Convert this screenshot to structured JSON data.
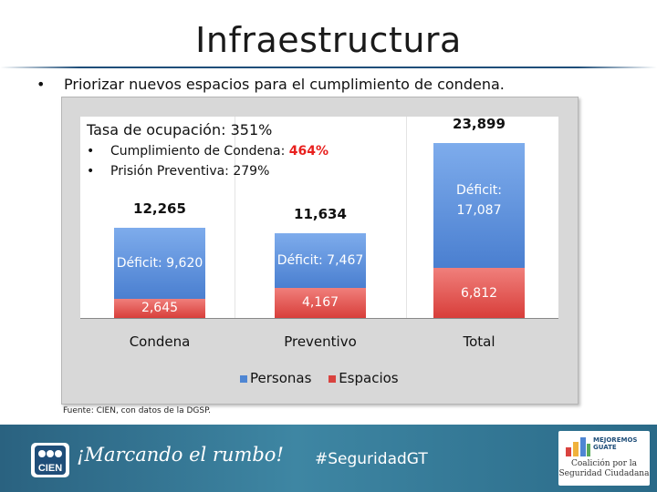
{
  "slide": {
    "title": "Infraestructura",
    "bullet_marker": "•",
    "bullet": "Priorizar nuevos espacios para el cumplimiento de condena.",
    "source": "Fuente: CIEN, con datos de la DGSP."
  },
  "stats": {
    "occupancy": "Tasa de ocupación: 351%",
    "items": [
      {
        "marker": "•",
        "label": "Cumplimiento de Condena: ",
        "value": "464%"
      },
      {
        "marker": "•",
        "label": "Prisión Preventiva: 279%"
      }
    ]
  },
  "chart_data": {
    "type": "bar",
    "stacked": true,
    "categories": [
      "Condena",
      "Preventivo",
      "Total"
    ],
    "series": [
      {
        "name": "Espacios",
        "color": "#d9433f",
        "values": [
          2645,
          4167,
          6812
        ]
      },
      {
        "name": "Personas",
        "color": "#4f86d3",
        "values": [
          9620,
          7467,
          17087
        ]
      }
    ],
    "totals": [
      "12,265",
      "11,634",
      "23,899"
    ],
    "bar_labels": {
      "espacios": [
        "2,645",
        "4,167",
        "6,812"
      ],
      "deficit": [
        "Déficit: 9,620",
        "Déficit: 7,467",
        "Déficit:\n17,087"
      ]
    },
    "legend": [
      "Personas",
      "Espacios"
    ],
    "ylim": [
      0,
      27500
    ],
    "grid": true
  },
  "footer": {
    "slogan": "¡Marcando el rumbo!",
    "hashtag": "#SeguridadGT",
    "logo_text": "CIEN",
    "partner": {
      "badge_line1": "MEJOREMOS",
      "badge_line2": "GUATE",
      "name_line1": "Coalición por la",
      "name_line2": "Seguridad Ciudadana"
    }
  }
}
